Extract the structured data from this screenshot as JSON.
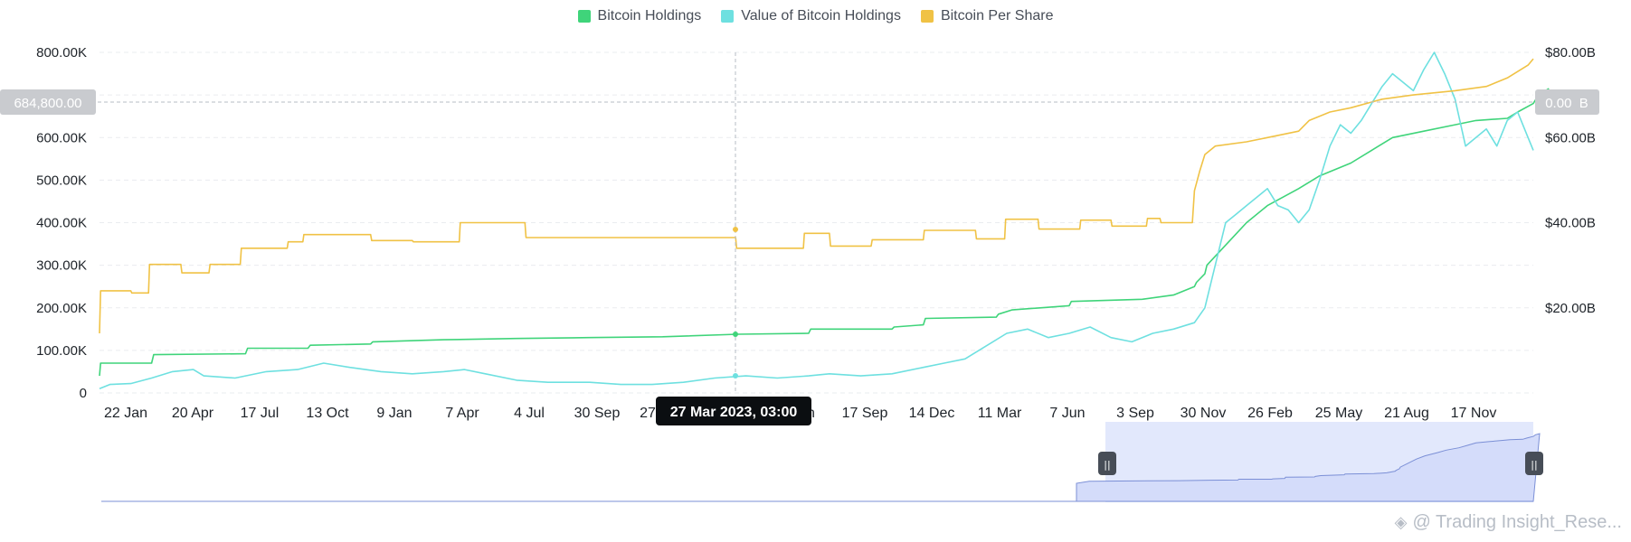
{
  "legend": [
    {
      "label": "Bitcoin Holdings",
      "color": "#3fd47a"
    },
    {
      "label": "Value of Bitcoin Holdings",
      "color": "#6ee0e0"
    },
    {
      "label": "Bitcoin Per Share",
      "color": "#f0c245"
    }
  ],
  "crosshair": {
    "left_value_label": "684,800.00",
    "right_value_label": "0.00  B",
    "date_label": "27 Mar 2023, 03:00"
  },
  "watermark": "@ Trading Insight_Rese...",
  "chart_data": {
    "type": "line",
    "x_ticks": [
      "22 Jan",
      "20 Apr",
      "17 Jul",
      "13 Oct",
      "9 Jan",
      "7 Apr",
      "4 Jul",
      "30 Sep",
      "27",
      "un",
      "17 Sep",
      "14 Dec",
      "11 Mar",
      "7 Jun",
      "3 Sep",
      "30 Nov",
      "26 Feb",
      "25 May",
      "21 Aug",
      "17 Nov"
    ],
    "y_left_ticks": [
      "0",
      "100.00K",
      "200.00K",
      "300.00K",
      "400.00K",
      "500.00K",
      "600.00K",
      "700.00K",
      "800.00K"
    ],
    "y_right_ticks": [
      "$20.00B",
      "$40.00B",
      "$60.00B",
      "$80.00B"
    ],
    "ylim_left": [
      0,
      800000
    ],
    "ylim_right": [
      0,
      80
    ],
    "series": [
      {
        "name": "Bitcoin Holdings",
        "axis": "left",
        "color": "#3fd47a",
        "points": [
          [
            0,
            40000
          ],
          [
            1,
            70000
          ],
          [
            50,
            70000
          ],
          [
            52,
            90000
          ],
          [
            140,
            92000
          ],
          [
            142,
            105000
          ],
          [
            200,
            105000
          ],
          [
            202,
            112000
          ],
          [
            260,
            115000
          ],
          [
            262,
            120000
          ],
          [
            330,
            125000
          ],
          [
            400,
            128000
          ],
          [
            470,
            130000
          ],
          [
            540,
            132000
          ],
          [
            612,
            138000
          ],
          [
            680,
            140000
          ],
          [
            682,
            150000
          ],
          [
            760,
            150000
          ],
          [
            762,
            155000
          ],
          [
            790,
            160000
          ],
          [
            792,
            175000
          ],
          [
            860,
            178000
          ],
          [
            862,
            185000
          ],
          [
            875,
            195000
          ],
          [
            930,
            205000
          ],
          [
            932,
            215000
          ],
          [
            1000,
            220000
          ],
          [
            1030,
            230000
          ],
          [
            1050,
            250000
          ],
          [
            1052,
            260000
          ],
          [
            1060,
            280000
          ],
          [
            1062,
            300000
          ],
          [
            1100,
            400000
          ],
          [
            1120,
            440000
          ],
          [
            1150,
            480000
          ],
          [
            1170,
            510000
          ],
          [
            1200,
            540000
          ],
          [
            1220,
            570000
          ],
          [
            1240,
            600000
          ],
          [
            1270,
            615000
          ],
          [
            1300,
            630000
          ],
          [
            1320,
            640000
          ],
          [
            1350,
            645000
          ],
          [
            1360,
            660000
          ],
          [
            1375,
            680000
          ],
          [
            1380,
            700000
          ],
          [
            1390,
            715000
          ]
        ]
      },
      {
        "name": "Value of Bitcoin Holdings",
        "axis": "right",
        "color": "#6ee0e0",
        "points": [
          [
            0,
            1.0
          ],
          [
            10,
            2.0
          ],
          [
            30,
            2.2
          ],
          [
            50,
            3.5
          ],
          [
            70,
            5.0
          ],
          [
            90,
            5.5
          ],
          [
            100,
            4.0
          ],
          [
            130,
            3.5
          ],
          [
            160,
            5.0
          ],
          [
            190,
            5.5
          ],
          [
            215,
            7.0
          ],
          [
            240,
            6.0
          ],
          [
            270,
            5.0
          ],
          [
            300,
            4.5
          ],
          [
            330,
            5.0
          ],
          [
            350,
            5.5
          ],
          [
            370,
            4.5
          ],
          [
            400,
            3.0
          ],
          [
            430,
            2.5
          ],
          [
            470,
            2.5
          ],
          [
            500,
            2.0
          ],
          [
            530,
            2.0
          ],
          [
            560,
            2.5
          ],
          [
            590,
            3.5
          ],
          [
            620,
            4.0
          ],
          [
            650,
            3.5
          ],
          [
            680,
            4.0
          ],
          [
            700,
            4.5
          ],
          [
            730,
            4.0
          ],
          [
            760,
            4.5
          ],
          [
            790,
            6.0
          ],
          [
            810,
            7.0
          ],
          [
            830,
            8.0
          ],
          [
            850,
            11.0
          ],
          [
            870,
            14.0
          ],
          [
            890,
            15.0
          ],
          [
            910,
            13.0
          ],
          [
            930,
            14.0
          ],
          [
            950,
            15.5
          ],
          [
            970,
            13.0
          ],
          [
            990,
            12.0
          ],
          [
            1010,
            14.0
          ],
          [
            1030,
            15.0
          ],
          [
            1050,
            16.5
          ],
          [
            1060,
            20.0
          ],
          [
            1070,
            30.0
          ],
          [
            1080,
            40.0
          ],
          [
            1090,
            42.0
          ],
          [
            1100,
            44.0
          ],
          [
            1110,
            46.0
          ],
          [
            1120,
            48.0
          ],
          [
            1130,
            44.0
          ],
          [
            1140,
            43.0
          ],
          [
            1150,
            40.0
          ],
          [
            1160,
            43.0
          ],
          [
            1170,
            50.0
          ],
          [
            1180,
            58.0
          ],
          [
            1190,
            63.0
          ],
          [
            1200,
            61.0
          ],
          [
            1210,
            64.0
          ],
          [
            1220,
            68.0
          ],
          [
            1230,
            72.0
          ],
          [
            1240,
            75.0
          ],
          [
            1250,
            73.0
          ],
          [
            1260,
            71.0
          ],
          [
            1270,
            76.0
          ],
          [
            1280,
            80.0
          ],
          [
            1290,
            75.0
          ],
          [
            1300,
            69.0
          ],
          [
            1310,
            58.0
          ],
          [
            1320,
            60.0
          ],
          [
            1330,
            62.0
          ],
          [
            1340,
            58.0
          ],
          [
            1350,
            64.0
          ],
          [
            1360,
            66.0
          ],
          [
            1370,
            60.0
          ],
          [
            1375,
            57.0
          ]
        ]
      },
      {
        "name": "Bitcoin Per Share",
        "axis": "left",
        "color": "#f0c245",
        "points": [
          [
            0,
            140000
          ],
          [
            1,
            240000
          ],
          [
            30,
            240000
          ],
          [
            31,
            235000
          ],
          [
            47,
            235000
          ],
          [
            48,
            302000
          ],
          [
            78,
            302000
          ],
          [
            79,
            282000
          ],
          [
            105,
            282000
          ],
          [
            106,
            302000
          ],
          [
            135,
            302000
          ],
          [
            136,
            340000
          ],
          [
            180,
            340000
          ],
          [
            181,
            355000
          ],
          [
            195,
            355000
          ],
          [
            196,
            372000
          ],
          [
            260,
            372000
          ],
          [
            261,
            358000
          ],
          [
            300,
            358000
          ],
          [
            301,
            355000
          ],
          [
            345,
            355000
          ],
          [
            346,
            400000
          ],
          [
            408,
            400000
          ],
          [
            409,
            365000
          ],
          [
            610,
            365000
          ],
          [
            611,
            340000
          ],
          [
            675,
            340000
          ],
          [
            676,
            375000
          ],
          [
            700,
            375000
          ],
          [
            701,
            345000
          ],
          [
            740,
            345000
          ],
          [
            741,
            360000
          ],
          [
            790,
            360000
          ],
          [
            791,
            382000
          ],
          [
            840,
            382000
          ],
          [
            841,
            362000
          ],
          [
            868,
            362000
          ],
          [
            869,
            408000
          ],
          [
            900,
            408000
          ],
          [
            901,
            385000
          ],
          [
            940,
            385000
          ],
          [
            941,
            406000
          ],
          [
            970,
            406000
          ],
          [
            971,
            392000
          ],
          [
            1004,
            392000
          ],
          [
            1005,
            410000
          ],
          [
            1017,
            410000
          ],
          [
            1018,
            400000
          ],
          [
            1048,
            400000
          ],
          [
            1050,
            475000
          ],
          [
            1055,
            520000
          ],
          [
            1060,
            560000
          ],
          [
            1070,
            580000
          ],
          [
            1100,
            590000
          ],
          [
            1120,
            600000
          ],
          [
            1150,
            615000
          ],
          [
            1160,
            640000
          ],
          [
            1180,
            660000
          ],
          [
            1200,
            670000
          ],
          [
            1230,
            690000
          ],
          [
            1260,
            700000
          ],
          [
            1300,
            710000
          ],
          [
            1330,
            720000
          ],
          [
            1350,
            740000
          ],
          [
            1370,
            770000
          ],
          [
            1375,
            785000
          ]
        ]
      }
    ]
  },
  "navigator": {
    "start_label": "⏸",
    "end_label": "⏸"
  }
}
